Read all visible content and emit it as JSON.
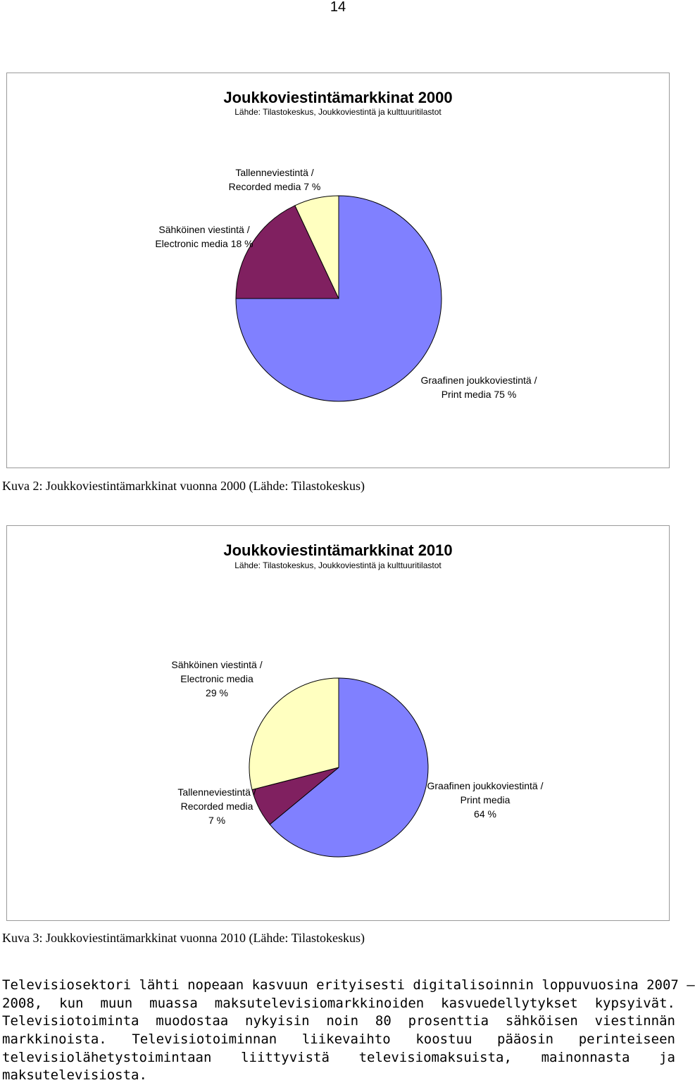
{
  "page": {
    "number": "14"
  },
  "figures": [
    {
      "title": "Joukkoviestintämarkkinat 2000",
      "subtitle": "Lähde: Tilastokeskus, Joukkoviestintä ja kulttuuritilastot",
      "caption": "Kuva 2: Joukkoviestintämarkkinat vuonna 2000 (Lähde: Tilastokeskus)",
      "slices": [
        {
          "label_line1": "Graafinen joukkoviestintä /",
          "label_line2": "Print media  75 %",
          "label_line3": "",
          "percent": 75,
          "color": "#8080ff"
        },
        {
          "label_line1": "Sähköinen viestintä /",
          "label_line2": "Electronic media 18 %",
          "label_line3": "",
          "percent": 18,
          "color": "#802060"
        },
        {
          "label_line1": "Tallenneviestintä /",
          "label_line2": "Recorded media 7 %",
          "label_line3": "",
          "percent": 7,
          "color": "#ffffc0"
        }
      ]
    },
    {
      "title": "Joukkoviestintämarkkinat 2010",
      "subtitle": "Lähde: Tilastokeskus, Joukkoviestintä ja kulttuuritilastot",
      "caption": "Kuva 3: Joukkoviestintämarkkinat vuonna 2010 (Lähde: Tilastokeskus)",
      "slices": [
        {
          "label_line1": "Graafinen joukkoviestintä /",
          "label_line2": "Print media",
          "label_line3": "64 %",
          "percent": 64,
          "color": "#8080ff"
        },
        {
          "label_line1": "Tallenneviestintä /",
          "label_line2": "Recorded media",
          "label_line3": "7 %",
          "percent": 7,
          "color": "#802060"
        },
        {
          "label_line1": "Sähköinen viestintä /",
          "label_line2": "Electronic media",
          "label_line3": "29 %",
          "percent": 29,
          "color": "#ffffc0"
        }
      ]
    }
  ],
  "chart_data": [
    {
      "type": "pie",
      "title": "Joukkoviestintämarkkinat 2000",
      "subtitle": "Lähde: Tilastokeskus, Joukkoviestintä ja kulttuuritilastot",
      "categories": [
        "Graafinen joukkoviestintä / Print media",
        "Sähköinen viestintä / Electronic media",
        "Tallenneviestintä / Recorded media"
      ],
      "values": [
        75,
        18,
        7
      ],
      "unit": "%"
    },
    {
      "type": "pie",
      "title": "Joukkoviestintämarkkinat 2010",
      "subtitle": "Lähde: Tilastokeskus, Joukkoviestintä ja kulttuuritilastot",
      "categories": [
        "Graafinen joukkoviestintä / Print media",
        "Tallenneviestintä / Recorded media",
        "Sähköinen viestintä / Electronic media"
      ],
      "values": [
        64,
        7,
        29
      ],
      "unit": "%"
    }
  ],
  "body": {
    "lines": [
      "Televisiosektori lähti nopeaan kasvuun erityisesti digitalisoinnin loppuvuosina 2007 –",
      "2008, kun muun muassa maksutelevisiomarkkinoiden kasvuedellytykset kypsyivät.",
      "Televisiotoiminta muodostaa nykyisin noin 80 prosenttia sähköisen viestinnän",
      "markkinoista. Televisiotoiminnan liikevaihto koostuu pääosin perinteiseen",
      "televisiolähetystoimintaan liittyvistä televisiomaksuista, mainonnasta ja",
      "maksutelevisiosta."
    ]
  }
}
